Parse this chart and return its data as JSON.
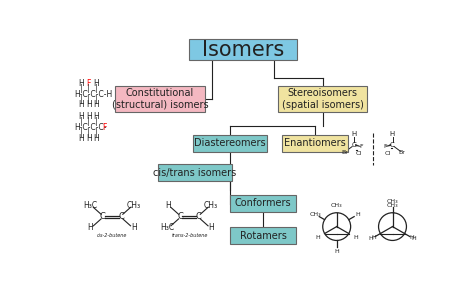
{
  "title": "Isomers",
  "title_box_color": "#7EC8E3",
  "constitutional_text": "Constitutional\n(structural) isomers",
  "constitutional_color": "#F4B8C1",
  "stereoisomers_text": "Stereoisomers\n(spatial isomers)",
  "stereoisomers_color": "#F0E3A0",
  "diastereomers_text": "Diastereomers",
  "diastereomers_color": "#7EC8C8",
  "enantiomers_text": "Enantiomers",
  "enantiomers_color": "#F0E3A0",
  "cis_trans_text": "cis/trans isomers",
  "cis_trans_color": "#7EC8C8",
  "conformers_text": "Conformers",
  "conformers_color": "#7EC8C8",
  "rotamers_text": "Rotamers",
  "rotamers_color": "#7EC8C8",
  "background_color": "#FFFFFF",
  "line_color": "#222222",
  "text_color": "#222222",
  "edge_color": "#666666"
}
